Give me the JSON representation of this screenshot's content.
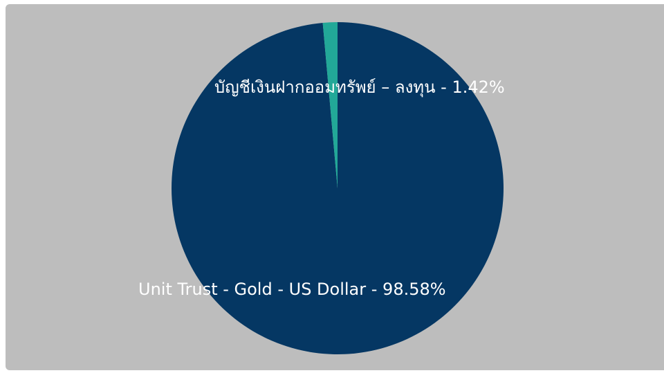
{
  "chart_data": {
    "type": "pie",
    "title": "",
    "slices": [
      {
        "label": "Unit Trust - Gold - US Dollar - 98.58%",
        "value": 98.58,
        "color": "#053763"
      },
      {
        "label": "บัญชีเงินฝากออมทรัพย์ – ลงทุน - 1.42%",
        "value": 1.42,
        "color": "#22a898"
      }
    ],
    "start_angle_deg": 0,
    "direction": "clockwise",
    "background_color": "#bdbdbd"
  }
}
